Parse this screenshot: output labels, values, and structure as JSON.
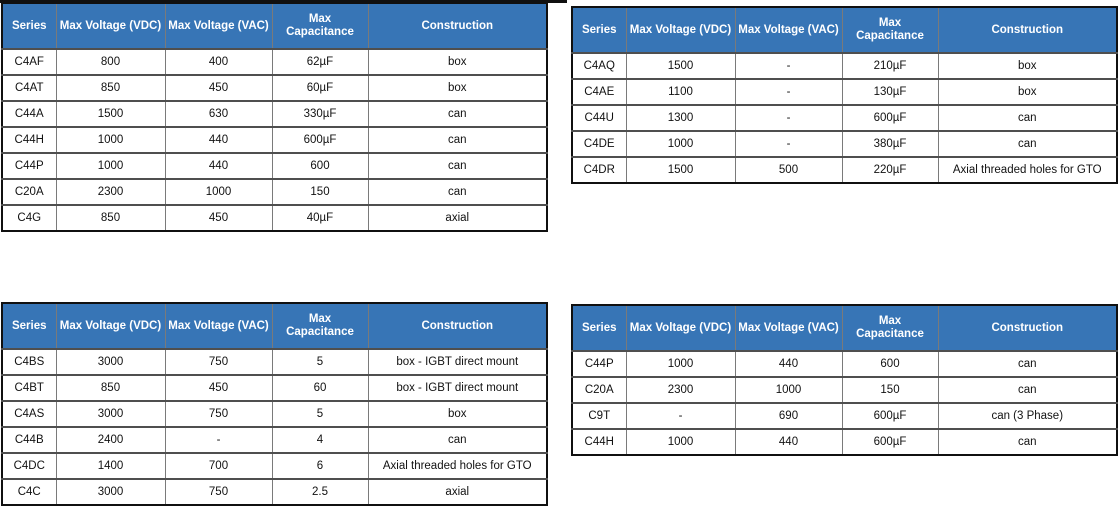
{
  "colors": {
    "page_bg": "#ffffff",
    "header_bg": "#3775b6",
    "header_text": "#ffffff",
    "body_text": "#111111",
    "grid_vertical": "#7a7a7a",
    "grid_horizontal": "#4f4f4f",
    "outer_border": "#101010"
  },
  "columns": [
    "Series",
    "Max Voltage (VDC)",
    "Max Voltage (VAC)",
    "Max Capacitance",
    "Construction"
  ],
  "tables": [
    {
      "name": "top-left",
      "rows": [
        [
          "C4AF",
          "800",
          "400",
          "62µF",
          "box"
        ],
        [
          "C4AT",
          "850",
          "450",
          "60µF",
          "box"
        ],
        [
          "C44A",
          "1500",
          "630",
          "330µF",
          "can"
        ],
        [
          "C44H",
          "1000",
          "440",
          "600µF",
          "can"
        ],
        [
          "C44P",
          "1000",
          "440",
          "600",
          "can"
        ],
        [
          "C20A",
          "2300",
          "1000",
          "150",
          "can"
        ],
        [
          "C4G",
          "850",
          "450",
          "40µF",
          "axial"
        ]
      ]
    },
    {
      "name": "top-right",
      "rows": [
        [
          "C4AQ",
          "1500",
          "-",
          "210µF",
          "box"
        ],
        [
          "C4AE",
          "1100",
          "-",
          "130µF",
          "box"
        ],
        [
          "C44U",
          "1300",
          "-",
          "600µF",
          "can"
        ],
        [
          "C4DE",
          "1000",
          "-",
          "380µF",
          "can"
        ],
        [
          "C4DR",
          "1500",
          "500",
          "220µF",
          "Axial threaded holes for GTO"
        ]
      ]
    },
    {
      "name": "bottom-left",
      "rows": [
        [
          "C4BS",
          "3000",
          "750",
          "5",
          "box - IGBT direct mount"
        ],
        [
          "C4BT",
          "850",
          "450",
          "60",
          "box - IGBT direct mount"
        ],
        [
          "C4AS",
          "3000",
          "750",
          "5",
          "box"
        ],
        [
          "C44B",
          "2400",
          "-",
          "4",
          "can"
        ],
        [
          "C4DC",
          "1400",
          "700",
          "6",
          "Axial threaded holes for GTO"
        ],
        [
          "C4C",
          "3000",
          "750",
          "2.5",
          "axial"
        ]
      ]
    },
    {
      "name": "bottom-right",
      "rows": [
        [
          "C44P",
          "1000",
          "440",
          "600",
          "can"
        ],
        [
          "C20A",
          "2300",
          "1000",
          "150",
          "can"
        ],
        [
          "C9T",
          "-",
          "690",
          "600µF",
          "can (3 Phase)"
        ],
        [
          "C44H",
          "1000",
          "440",
          "600µF",
          "can"
        ]
      ]
    }
  ]
}
